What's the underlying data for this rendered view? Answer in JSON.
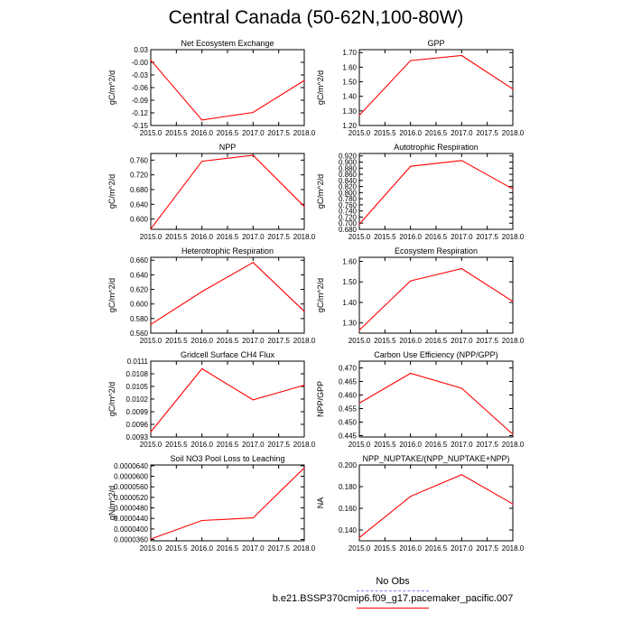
{
  "title": "Central Canada (50-62N,100-80W)",
  "legend": {
    "obs_label": "No Obs",
    "obs_color": "#8080ff",
    "model_label": "b.e21.BSSP370cmip6.f09_g17.pacemaker_pacific.007",
    "model_color": "#ff0000"
  },
  "chart_data": [
    {
      "type": "line",
      "title": "Net Ecosystem Exchange",
      "ylabel": "gC/m^2/d",
      "x": [
        2015.0,
        2016.0,
        2017.0,
        2018.0
      ],
      "xticks": [
        "2015.0",
        "2015.5",
        "2016.0",
        "2016.5",
        "2017.0",
        "2017.5",
        "2018.0"
      ],
      "xlim": [
        2015.0,
        2018.0
      ],
      "yticks": [
        "0.03",
        "-0.00",
        "-0.03",
        "-0.06",
        "-0.09",
        "-0.12",
        "-0.15"
      ],
      "ylim": [
        -0.15,
        0.03
      ],
      "series": [
        {
          "values": [
            0.005,
            -0.137,
            -0.119,
            -0.043
          ],
          "color": "#ff0000"
        }
      ]
    },
    {
      "type": "line",
      "title": "GPP",
      "ylabel": "gC/m^2/d",
      "x": [
        2015.0,
        2016.0,
        2017.0,
        2018.0
      ],
      "xticks": [
        "2015.0",
        "2015.5",
        "2016.0",
        "2016.5",
        "2017.0",
        "2017.5",
        "2018.0"
      ],
      "xlim": [
        2015.0,
        2018.0
      ],
      "yticks": [
        "1.70",
        "1.60",
        "1.50",
        "1.40",
        "1.30",
        "1.20"
      ],
      "ylim": [
        1.2,
        1.72
      ],
      "series": [
        {
          "values": [
            1.27,
            1.645,
            1.68,
            1.45
          ],
          "color": "#ff0000"
        }
      ]
    },
    {
      "type": "line",
      "title": "NPP",
      "ylabel": "gC/m^2/d",
      "x": [
        2015.0,
        2016.0,
        2017.0,
        2018.0
      ],
      "xticks": [
        "2015.0",
        "2015.5",
        "2016.0",
        "2016.5",
        "2017.0",
        "2017.5",
        "2018.0"
      ],
      "xlim": [
        2015.0,
        2018.0
      ],
      "yticks": [
        "0.760",
        "0.720",
        "0.680",
        "0.640",
        "0.600"
      ],
      "ylim": [
        0.572,
        0.778
      ],
      "series": [
        {
          "values": [
            0.573,
            0.757,
            0.773,
            0.634
          ],
          "color": "#ff0000"
        }
      ]
    },
    {
      "type": "line",
      "title": "Autotrophic Respiration",
      "ylabel": "gC/m^2/d",
      "x": [
        2015.0,
        2016.0,
        2017.0,
        2018.0
      ],
      "xticks": [
        "2015.0",
        "2015.5",
        "2016.0",
        "2016.5",
        "2017.0",
        "2017.5",
        "2018.0"
      ],
      "xlim": [
        2015.0,
        2018.0
      ],
      "yticks": [
        "0.920",
        "0.900",
        "0.880",
        "0.860",
        "0.840",
        "0.820",
        "0.800",
        "0.780",
        "0.760",
        "0.740",
        "0.720",
        "0.700",
        "0.680"
      ],
      "ylim": [
        0.68,
        0.928
      ],
      "series": [
        {
          "values": [
            0.697,
            0.886,
            0.905,
            0.812
          ],
          "color": "#ff0000"
        }
      ]
    },
    {
      "type": "line",
      "title": "Heterotrophic Respiration",
      "ylabel": "gC/m^2/d",
      "x": [
        2015.0,
        2016.0,
        2017.0,
        2018.0
      ],
      "xticks": [
        "2015.0",
        "2015.5",
        "2016.0",
        "2016.5",
        "2017.0",
        "2017.5",
        "2018.0"
      ],
      "xlim": [
        2015.0,
        2018.0
      ],
      "yticks": [
        "0.660",
        "0.640",
        "0.620",
        "0.600",
        "0.580",
        "0.560"
      ],
      "ylim": [
        0.56,
        0.664
      ],
      "series": [
        {
          "values": [
            0.572,
            0.617,
            0.657,
            0.59
          ],
          "color": "#ff0000"
        }
      ]
    },
    {
      "type": "line",
      "title": "Ecosystem Respiration",
      "ylabel": "gC/m^2/d",
      "x": [
        2015.0,
        2016.0,
        2017.0,
        2018.0
      ],
      "xticks": [
        "2015.0",
        "2015.5",
        "2016.0",
        "2016.5",
        "2017.0",
        "2017.5",
        "2018.0"
      ],
      "xlim": [
        2015.0,
        2018.0
      ],
      "yticks": [
        "1.60",
        "1.50",
        "1.40",
        "1.30"
      ],
      "ylim": [
        1.25,
        1.62
      ],
      "series": [
        {
          "values": [
            1.265,
            1.505,
            1.565,
            1.405
          ],
          "color": "#ff0000"
        }
      ]
    },
    {
      "type": "line",
      "title": "Gridcell Surface CH4 Flux",
      "ylabel": "gC/m^2/d",
      "x": [
        2015.0,
        2016.0,
        2017.0,
        2018.0
      ],
      "xticks": [
        "2015.0",
        "2015.5",
        "2016.0",
        "2016.5",
        "2017.0",
        "2017.5",
        "2018.0"
      ],
      "xlim": [
        2015.0,
        2018.0
      ],
      "yticks": [
        "0.0111",
        "0.0108",
        "0.0105",
        "0.0102",
        "0.0099",
        "0.0096",
        "0.0093"
      ],
      "ylim": [
        0.0093,
        0.0111
      ],
      "series": [
        {
          "values": [
            0.00942,
            0.01092,
            0.01018,
            0.01053
          ],
          "color": "#ff0000"
        }
      ]
    },
    {
      "type": "line",
      "title": "Carbon Use Efficiency (NPP/GPP)",
      "ylabel": "NPP/GPP",
      "x": [
        2015.0,
        2016.0,
        2017.0,
        2018.0
      ],
      "xticks": [
        "2015.0",
        "2015.5",
        "2016.0",
        "2016.5",
        "2017.0",
        "2017.5",
        "2018.0"
      ],
      "xlim": [
        2015.0,
        2018.0
      ],
      "yticks": [
        "0.470",
        "0.465",
        "0.460",
        "0.455",
        "0.450",
        "0.445"
      ],
      "ylim": [
        0.4445,
        0.4725
      ],
      "series": [
        {
          "values": [
            0.457,
            0.468,
            0.4625,
            0.4455
          ],
          "color": "#ff0000"
        }
      ]
    },
    {
      "type": "line",
      "title": "Soil NO3 Pool Loss to Leaching",
      "ylabel": "gN/m^2/d",
      "x": [
        2015.0,
        2016.0,
        2017.0,
        2018.0
      ],
      "xticks": [
        "2015.0",
        "2015.5",
        "2016.0",
        "2016.5",
        "2017.0",
        "2017.5",
        "2018.0"
      ],
      "xlim": [
        2015.0,
        2018.0
      ],
      "yticks": [
        "0.0000640",
        "0.0000600",
        "0.0000560",
        "0.0000520",
        "0.0000480",
        "0.0000440",
        "0.0000400",
        "0.0000360"
      ],
      "ylim": [
        3.55e-05,
        6.43e-05
      ],
      "series": [
        {
          "values": [
            3.62e-05,
            4.32e-05,
            4.42e-05,
            6.32e-05
          ],
          "color": "#ff0000"
        }
      ]
    },
    {
      "type": "line",
      "title": "NPP_NUPTAKE/(NPP_NUPTAKE+NPP)",
      "ylabel": "NA",
      "x": [
        2015.0,
        2016.0,
        2017.0,
        2018.0
      ],
      "xticks": [
        "2015.0",
        "2015.5",
        "2016.0",
        "2016.5",
        "2017.0",
        "2017.5",
        "2018.0"
      ],
      "xlim": [
        2015.0,
        2018.0
      ],
      "yticks": [
        "0.200",
        "0.180",
        "0.160",
        "0.140"
      ],
      "ylim": [
        0.13,
        0.2
      ],
      "series": [
        {
          "values": [
            0.133,
            0.171,
            0.191,
            0.164
          ],
          "color": "#ff0000"
        }
      ]
    }
  ]
}
